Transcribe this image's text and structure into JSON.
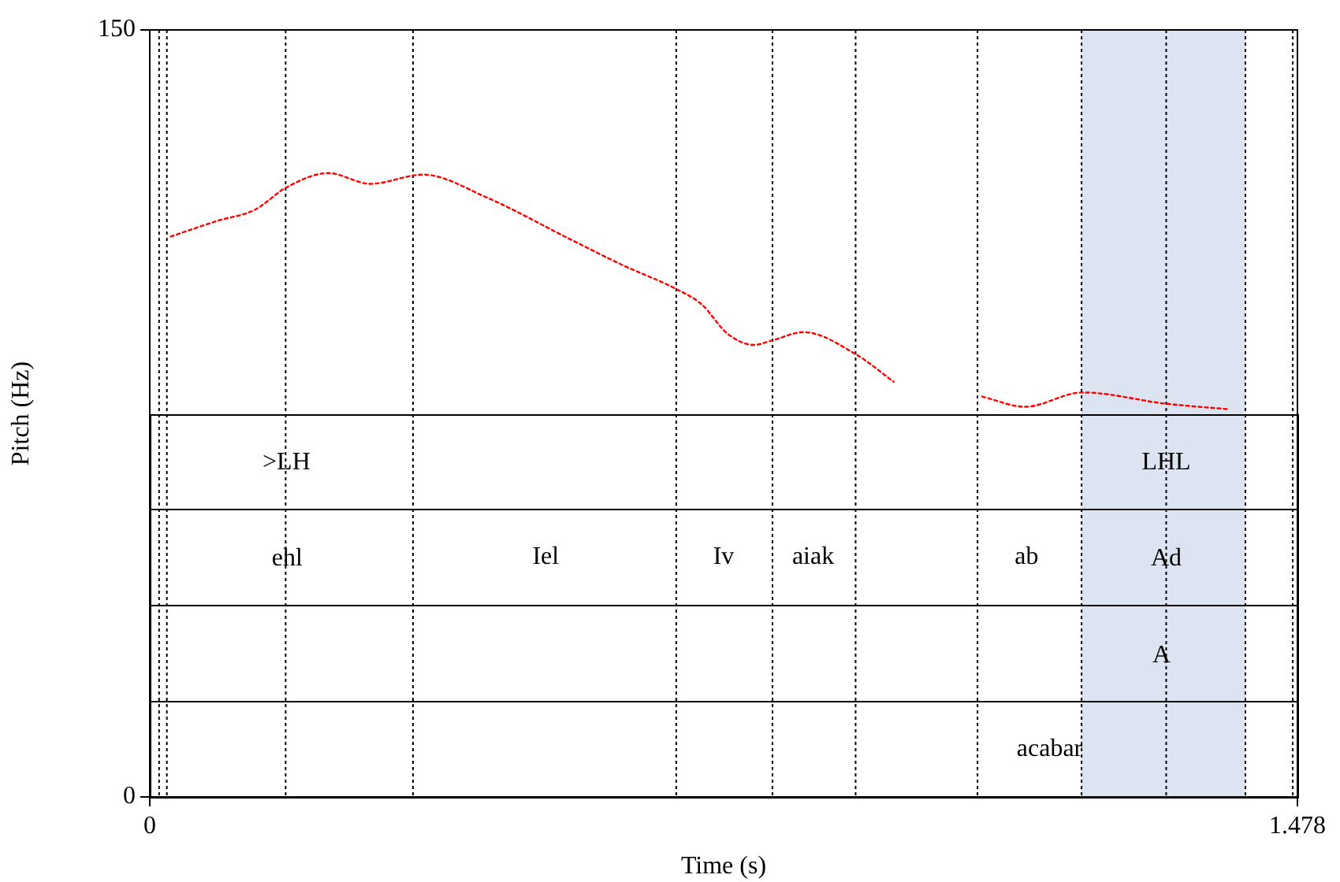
{
  "chart_data": {
    "type": "line",
    "xlabel": "Time (s)",
    "ylabel": "Pitch (Hz)",
    "x": [
      0.027,
      0.088,
      0.135,
      0.176,
      0.23,
      0.284,
      0.352,
      0.433,
      0.541,
      0.609,
      0.677,
      0.711,
      0.744,
      0.778,
      0.802,
      0.842,
      0.91,
      0.958,
      1.0,
      1.072,
      1.127,
      1.201,
      1.309,
      1.391
    ],
    "series": [
      {
        "color": "#ff0000",
        "values": [
          109.6,
          112.7,
          114.8,
          119.2,
          122.0,
          119.9,
          121.7,
          117.3,
          109.1,
          104.0,
          99.4,
          96.3,
          90.6,
          88.4,
          89.3,
          90.9,
          86.5,
          81.2,
          null,
          78.3,
          76.3,
          79.1,
          76.9,
          75.8
        ]
      }
    ],
    "xlim": [
      0,
      1.478
    ],
    "ylim": [
      0,
      150
    ],
    "xticks": [
      0,
      1.478
    ],
    "yticks": [
      0,
      150
    ],
    "legend": false,
    "marker": "none",
    "line_style": "dotted",
    "ref_lines": [
      {
        "axis": "x",
        "value": 0.012
      },
      {
        "axis": "x",
        "value": 0.022
      },
      {
        "axis": "x",
        "value": 0.175
      },
      {
        "axis": "x",
        "value": 0.339
      },
      {
        "axis": "x",
        "value": 0.678
      },
      {
        "axis": "x",
        "value": 0.802
      },
      {
        "axis": "x",
        "value": 0.909
      },
      {
        "axis": "x",
        "value": 1.066
      },
      {
        "axis": "x",
        "value": 1.2
      },
      {
        "axis": "x",
        "value": 1.309
      },
      {
        "axis": "x",
        "value": 1.411
      },
      {
        "axis": "x",
        "value": 1.472
      }
    ],
    "bands": [
      {
        "axis": "x",
        "from": 1.2,
        "to": 1.411,
        "color": "#dbe4f0"
      }
    ],
    "annotations": [
      {
        "text": ">LH",
        "x": 0.176,
        "y": 65.3
      },
      {
        "text": "LHL",
        "x": 1.309,
        "y": 65.3
      },
      {
        "text": "ehl",
        "x": 0.177,
        "y": 46.5
      },
      "Iel",
      "Iv",
      "aiak",
      "ab",
      {
        "text": "Ad",
        "x": 1.309,
        "y": 46.5
      },
      {
        "text": "A",
        "x": 1.303,
        "y": 27.7
      },
      "acabar"
    ]
  }
}
